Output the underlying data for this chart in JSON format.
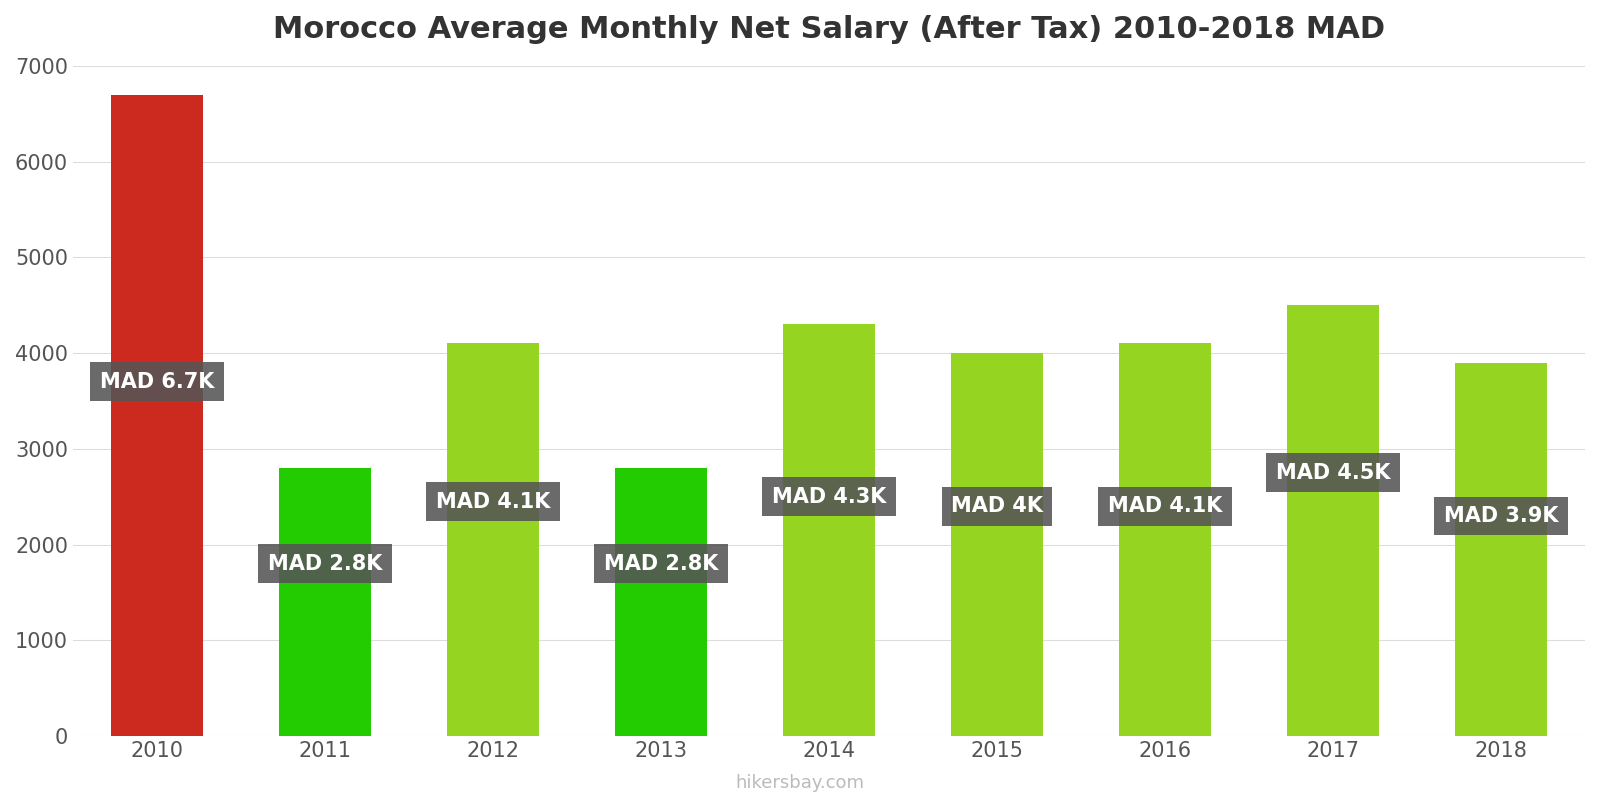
{
  "title": "Morocco Average Monthly Net Salary (After Tax) 2010-2018 MAD",
  "years": [
    2010,
    2011,
    2012,
    2013,
    2014,
    2015,
    2016,
    2017,
    2018
  ],
  "values": [
    6700,
    2800,
    4100,
    2800,
    4300,
    4000,
    4100,
    4500,
    3900
  ],
  "bar_colors": [
    "#cc2a1e",
    "#22cc00",
    "#96d422",
    "#22cc00",
    "#96d422",
    "#96d422",
    "#96d422",
    "#96d422",
    "#96d422"
  ],
  "labels": [
    "MAD 6.7K",
    "MAD 2.8K",
    "MAD 4.1K",
    "MAD 2.8K",
    "MAD 4.3K",
    "MAD 4K",
    "MAD 4.1K",
    "MAD 4.5K",
    "MAD 3.9K"
  ],
  "label_y_positions": [
    3700,
    1800,
    2450,
    1800,
    2500,
    2400,
    2400,
    2750,
    2300
  ],
  "ylim": [
    0,
    7000
  ],
  "yticks": [
    0,
    1000,
    2000,
    3000,
    4000,
    5000,
    6000,
    7000
  ],
  "background_color": "#ffffff",
  "grid_color": "#dddddd",
  "label_bg_color": "#555555",
  "label_text_color": "#ffffff",
  "watermark": "hikersbay.com",
  "title_fontsize": 22,
  "tick_fontsize": 15,
  "label_fontsize": 15,
  "bar_width": 0.55
}
